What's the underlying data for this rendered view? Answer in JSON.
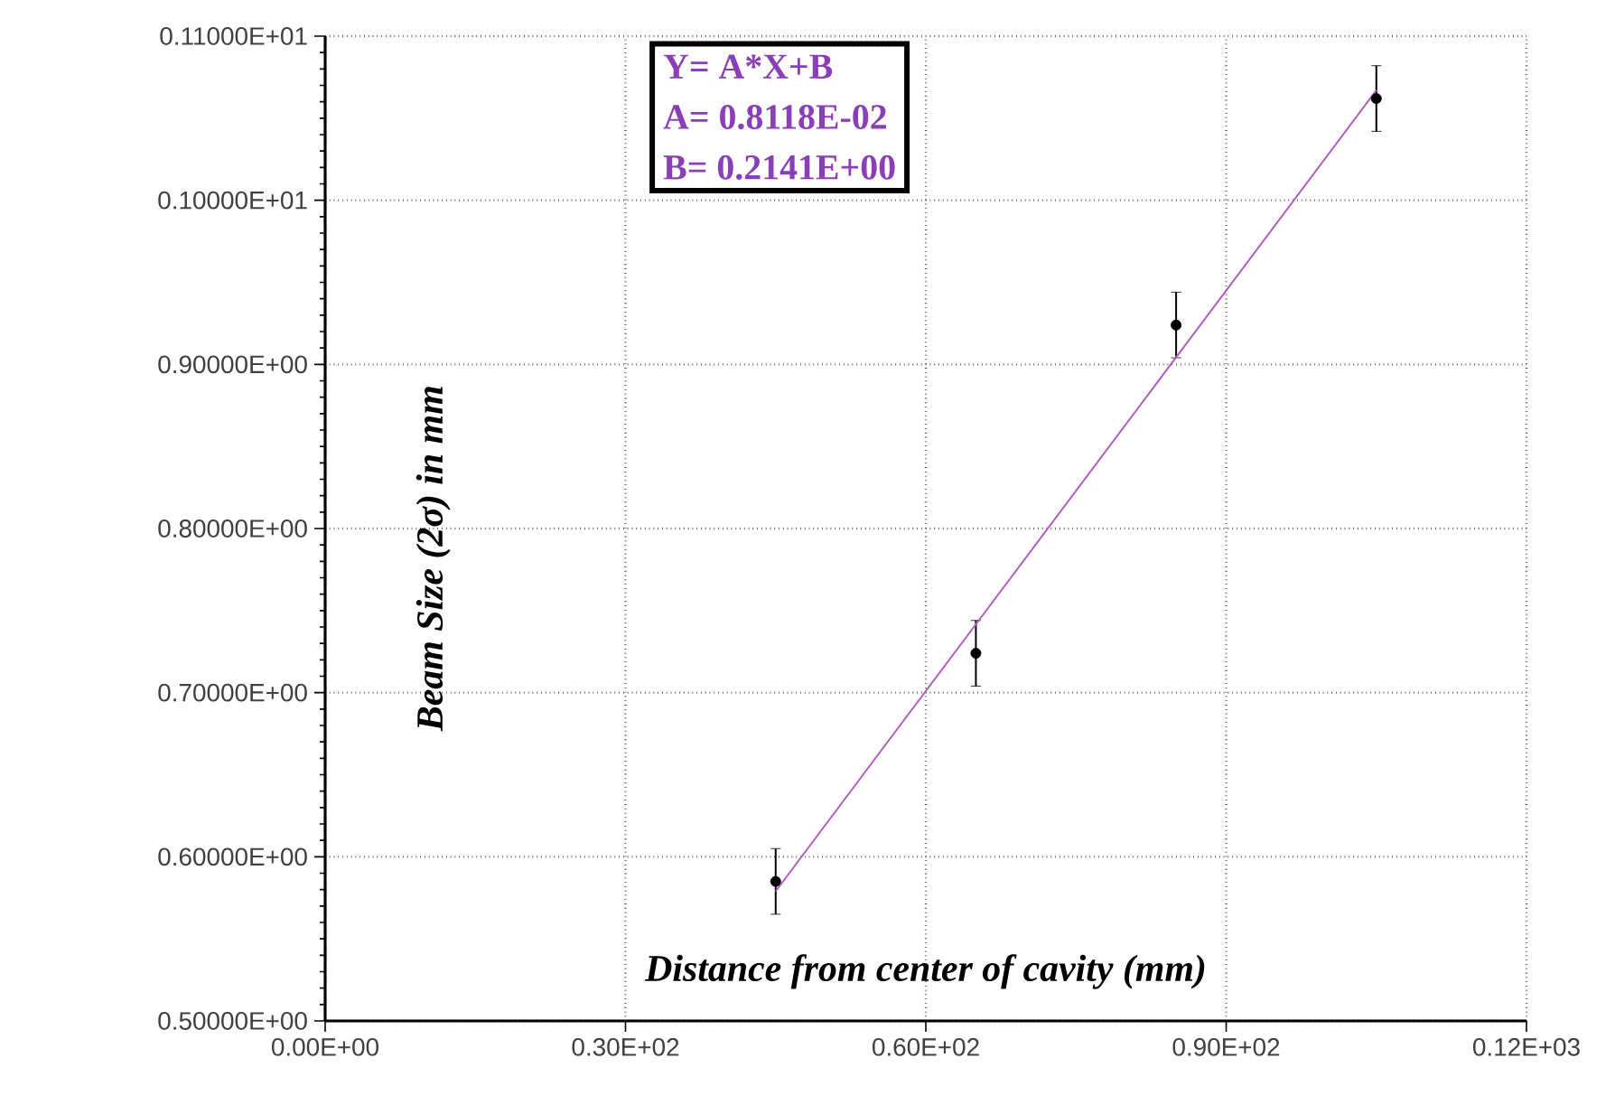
{
  "chart_data": {
    "type": "scatter",
    "xlabel": "Distance from center of cavity (mm)",
    "ylabel": "Beam Size (2σ) in mm",
    "annotations": [
      "Y=  A*X+B",
      "A=  0.8118E-02",
      "B=  0.2141E+00"
    ],
    "xlim": [
      0,
      120
    ],
    "ylim": [
      0.5,
      1.1
    ],
    "xticks": [
      {
        "value": 0,
        "label": "0.00E+00"
      },
      {
        "value": 30,
        "label": "0.30E+02"
      },
      {
        "value": 60,
        "label": "0.60E+02"
      },
      {
        "value": 90,
        "label": "0.90E+02"
      },
      {
        "value": 120,
        "label": "0.12E+03"
      }
    ],
    "yticks": [
      {
        "value": 0.5,
        "label": "0.50000E+00"
      },
      {
        "value": 0.6,
        "label": "0.60000E+00"
      },
      {
        "value": 0.7,
        "label": "0.70000E+00"
      },
      {
        "value": 0.8,
        "label": "0.80000E+00"
      },
      {
        "value": 0.9,
        "label": "0.90000E+00"
      },
      {
        "value": 1.0,
        "label": "0.10000E+01"
      },
      {
        "value": 1.1,
        "label": "0.11000E+01"
      }
    ],
    "grid": true,
    "marker": "circle",
    "series": [
      {
        "color": "#000000",
        "x": [
          45,
          65,
          85,
          105
        ],
        "values": [
          0.585,
          0.724,
          0.924,
          1.062
        ],
        "errors": [
          0.02,
          0.02,
          0.02,
          0.02
        ]
      },
      {
        "type": "line",
        "color": "#b05fc0",
        "marker": "none",
        "x": [
          45,
          105
        ],
        "values": [
          0.579,
          1.067
        ]
      }
    ]
  }
}
